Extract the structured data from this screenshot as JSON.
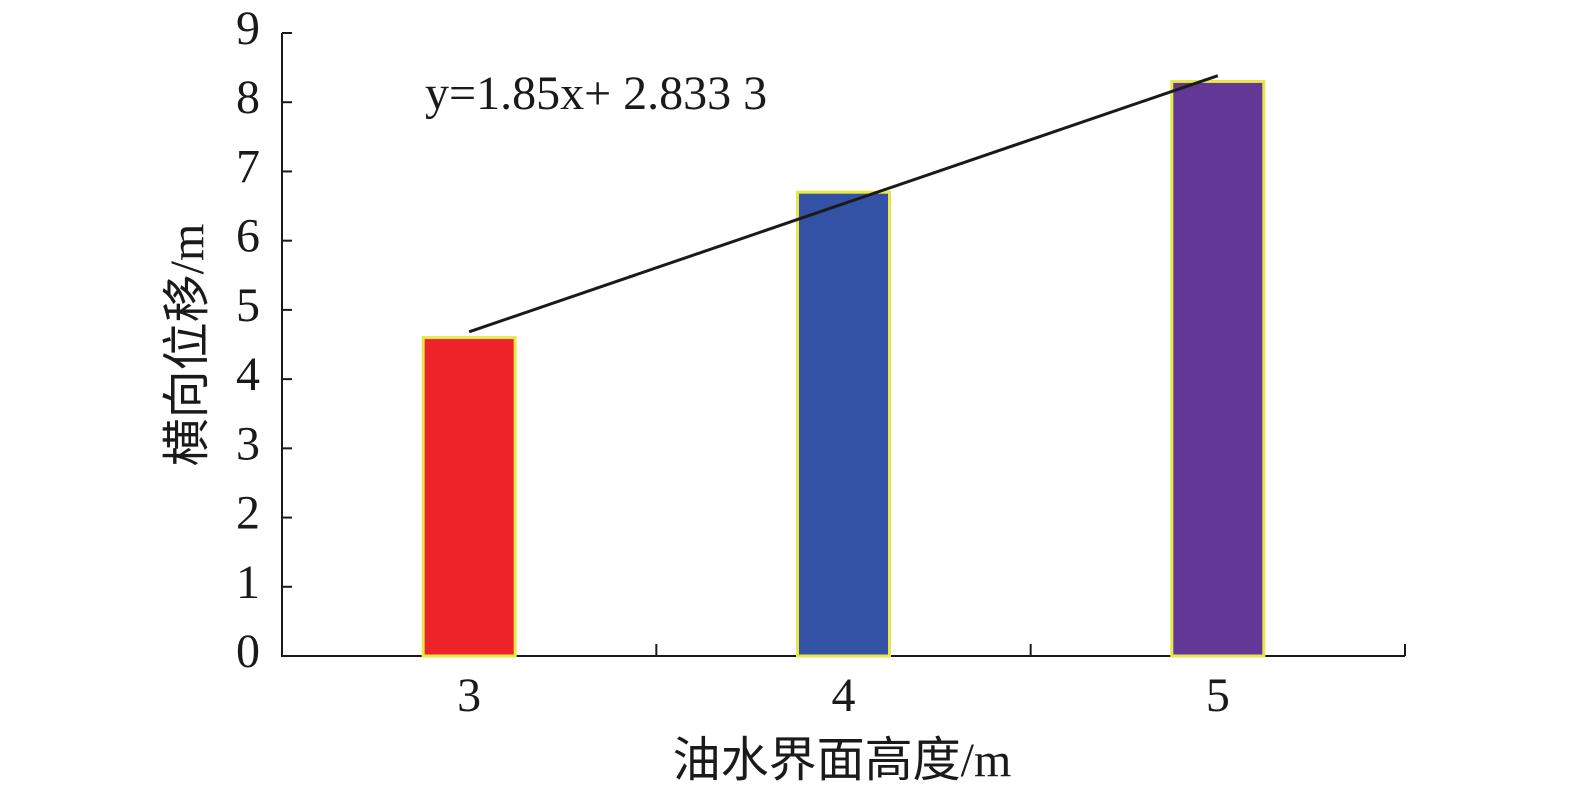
{
  "chart_data": {
    "type": "bar",
    "x_label": "油水界面高度/m",
    "y_label": "横向位移/m",
    "categories": [
      "3",
      "4",
      "5"
    ],
    "values": [
      4.6,
      6.7,
      8.3
    ],
    "colors": [
      "#ee2229",
      "#3352a6",
      "#623795"
    ],
    "edge_color": "#e6e84a",
    "ylim": [
      0,
      9
    ],
    "yticks": [
      0,
      1,
      2,
      3,
      4,
      5,
      6,
      7,
      8,
      9
    ],
    "grid": false,
    "trendline": {
      "label": "y=1.85x+ 2.833 3",
      "slope": 1.85,
      "intercept": 2.8333,
      "color": "#1a1a1a"
    }
  }
}
